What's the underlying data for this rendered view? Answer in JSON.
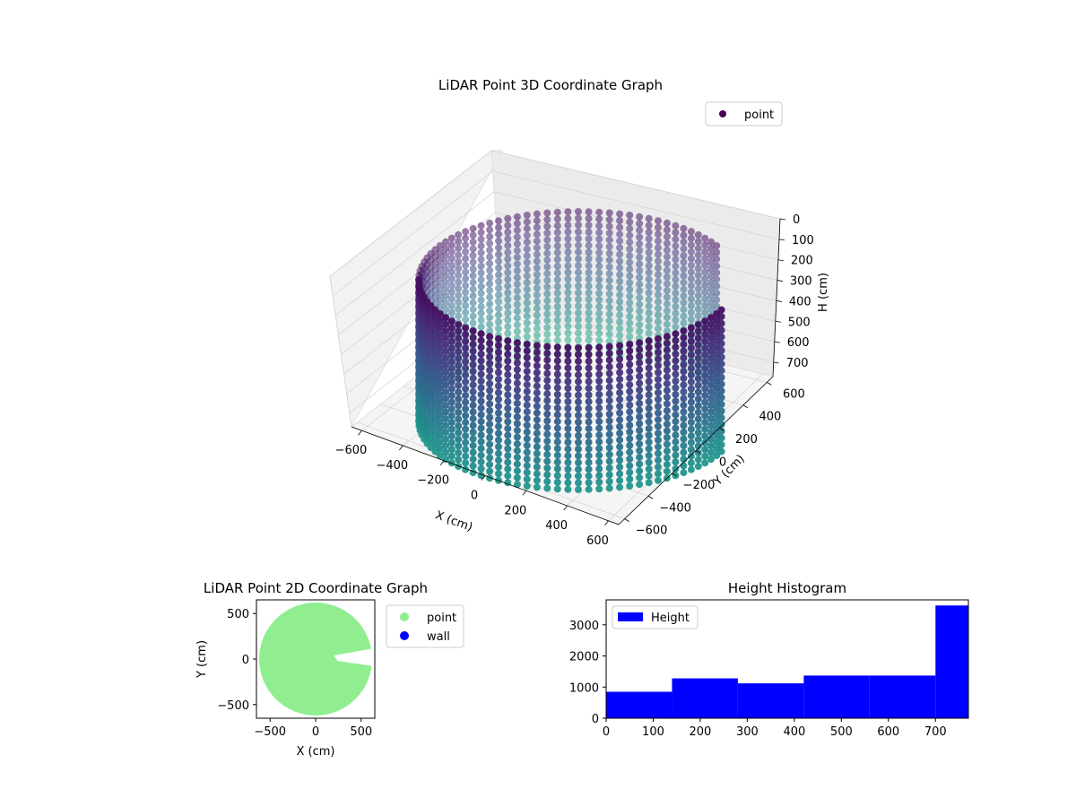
{
  "chart_data": [
    {
      "type": "scatter3d",
      "title": "LiDAR Point 3D Coordinate Graph",
      "xlabel": "X (cm)",
      "ylabel": "Y (cm)",
      "zlabel": "H (cm)",
      "xlim": [
        -650,
        650
      ],
      "ylim": [
        -650,
        650
      ],
      "zlim": [
        0,
        770
      ],
      "z_inverted": true,
      "xticks": [
        "−600",
        "−400",
        "−200",
        "0",
        "200",
        "400",
        "600"
      ],
      "yticks": [
        "−600",
        "−400",
        "−200",
        "0",
        "200",
        "400",
        "600"
      ],
      "zticks": [
        "0",
        "100",
        "200",
        "300",
        "400",
        "500",
        "600",
        "700"
      ],
      "legend": [
        {
          "label": "point",
          "color": "#440154"
        }
      ],
      "legend_position": "top-right",
      "colormap": "viridis",
      "cylinder": {
        "radius": 620,
        "height_range": [
          0,
          650
        ],
        "opening_angle_range_deg": [
          -30,
          25
        ]
      },
      "grid": true
    },
    {
      "type": "scatter",
      "title": "LiDAR Point 2D Coordinate Graph",
      "xlabel": "X (cm)",
      "ylabel": "Y (cm)",
      "xlim": [
        -650,
        650
      ],
      "ylim": [
        -650,
        650
      ],
      "xticks": [
        "−500",
        "0",
        "500"
      ],
      "yticks": [
        "500",
        "0",
        "−500"
      ],
      "legend": [
        {
          "label": "point",
          "color": "#90ee90"
        },
        {
          "label": "wall",
          "color": "#0000ff"
        }
      ],
      "legend_position": "outside-right",
      "disk_radius": 620
    },
    {
      "type": "bar",
      "title": "Height Histogram",
      "legend": [
        {
          "label": "Height",
          "color": "#0000ff"
        }
      ],
      "legend_position": "upper-left",
      "xlim": [
        0,
        770
      ],
      "ylim": [
        0,
        3800
      ],
      "xticks": [
        "0",
        "100",
        "200",
        "300",
        "400",
        "500",
        "600",
        "700"
      ],
      "yticks": [
        "0",
        "1000",
        "2000",
        "3000"
      ],
      "bins": [
        {
          "x0": 0,
          "x1": 140,
          "value": 850
        },
        {
          "x0": 140,
          "x1": 280,
          "value": 1280
        },
        {
          "x0": 280,
          "x1": 420,
          "value": 1120
        },
        {
          "x0": 420,
          "x1": 560,
          "value": 1370
        },
        {
          "x0": 560,
          "x1": 700,
          "value": 1370
        },
        {
          "x0": 700,
          "x1": 770,
          "value": 3620
        }
      ],
      "color": "#0000ff"
    }
  ]
}
